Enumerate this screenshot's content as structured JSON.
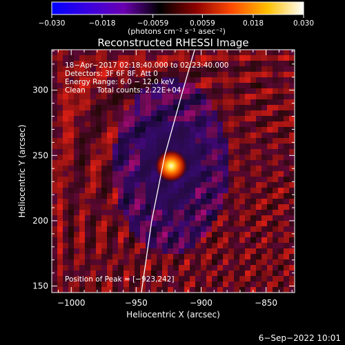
{
  "chart_data": {
    "type": "heatmap",
    "title": "Reconstructed RHESSI Image",
    "xlabel": "Heliocentric X (arcsec)",
    "ylabel": "Heliocentric Y (arcsec)",
    "xlim": [
      -1015,
      -828
    ],
    "ylim": [
      145,
      331
    ],
    "x_ticks": [
      -1000,
      -950,
      -900,
      -850
    ],
    "x_tick_labels": [
      "−1000",
      "−950",
      "−900",
      "−850"
    ],
    "y_ticks": [
      150,
      200,
      250,
      300
    ],
    "y_tick_labels": [
      "150",
      "200",
      "250",
      "300"
    ],
    "colorbar": {
      "range": [
        -0.03,
        0.03
      ],
      "ticks": [
        -0.03,
        -0.018,
        -0.0059,
        0.0059,
        0.018,
        0.03
      ],
      "tick_labels": [
        "−0.030",
        "−0.018",
        "−0.0059",
        "0.0059",
        "0.018",
        "0.030"
      ],
      "units": "(photons cm⁻² s⁻¹ asec⁻²)",
      "colormap": [
        "#0000ff",
        "#3a00e0",
        "#6a00b0",
        "#000000",
        "#8b0000",
        "#ff4a00",
        "#ffc000",
        "#ffffff"
      ]
    },
    "annotations": {
      "line1": "18−Apr−2017 02:18:40.000 to 02:23:40.000",
      "line2": "Detectors: 3F 6F 8F, Att 0",
      "line3": "Energy Range: 6.0 − 12.0 keV",
      "line4": "Clean     Total counts: 2.22E+04",
      "peak": "Position of Peak = [−923,242]"
    },
    "peak": {
      "x": -923,
      "y": 242
    },
    "limb_curve": [
      {
        "x": -946,
        "y": 145
      },
      {
        "x": -938,
        "y": 200
      },
      {
        "x": -928,
        "y": 250
      },
      {
        "x": -914,
        "y": 300
      },
      {
        "x": -905,
        "y": 331
      }
    ],
    "footer_date": "6−Sep−2022 10:01"
  }
}
